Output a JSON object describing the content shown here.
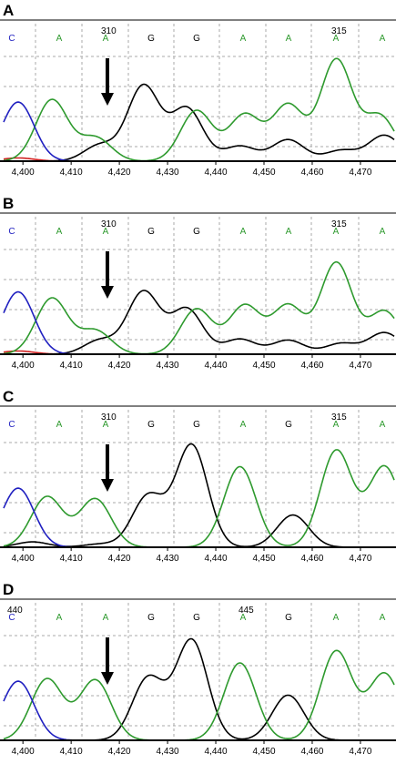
{
  "colors": {
    "A": "#2e9a2e",
    "G": "#000000",
    "C": "#2020c0",
    "T": "#d02020",
    "grid": "#a8a8a8"
  },
  "x_ticks": [
    "4,400",
    "4,410",
    "4,420",
    "4,430",
    "4,440",
    "4,450",
    "4,460",
    "4,470"
  ],
  "panels": [
    {
      "label": "A",
      "pos_labels": [
        {
          "text": "310",
          "base_index": 2
        },
        {
          "text": "315",
          "base_index": 7
        }
      ],
      "bases": [
        "C",
        "A",
        "A",
        "G",
        "G",
        "A",
        "A",
        "A",
        "A"
      ],
      "arrow_base_index": 2
    },
    {
      "label": "B",
      "pos_labels": [
        {
          "text": "310",
          "base_index": 2
        },
        {
          "text": "315",
          "base_index": 7
        }
      ],
      "bases": [
        "C",
        "A",
        "A",
        "G",
        "G",
        "A",
        "A",
        "A",
        "A"
      ],
      "arrow_base_index": 2
    },
    {
      "label": "C",
      "pos_labels": [
        {
          "text": "310",
          "base_index": 2
        },
        {
          "text": "315",
          "base_index": 7
        }
      ],
      "bases": [
        "C",
        "A",
        "A",
        "G",
        "G",
        "A",
        "G",
        "A",
        "A"
      ],
      "arrow_base_index": 2
    },
    {
      "label": "D",
      "pos_labels": [
        {
          "text": "440",
          "base_index": 0
        },
        {
          "text": "445",
          "base_index": 5
        }
      ],
      "bases": [
        "C",
        "A",
        "A",
        "G",
        "G",
        "A",
        "G",
        "A",
        "A"
      ],
      "arrow_base_index": 2
    }
  ],
  "chart_data": [
    {
      "type": "line",
      "panel": "A",
      "x_ticks": [
        "4,400",
        "4,410",
        "4,420",
        "4,430",
        "4,440",
        "4,450",
        "4,460",
        "4,470"
      ],
      "bases": [
        "C",
        "A",
        "A",
        "G",
        "G",
        "A",
        "A",
        "A",
        "A"
      ],
      "peaks": {
        "C": [
          [
            4399,
            0.55
          ]
        ],
        "A": [
          [
            4406,
            0.57
          ],
          [
            4415,
            0.22
          ],
          [
            4436,
            0.47
          ],
          [
            4446,
            0.43
          ],
          [
            4455,
            0.52
          ],
          [
            4465,
            0.94
          ],
          [
            4474,
            0.42
          ]
        ],
        "G": [
          [
            4416,
            0.15
          ],
          [
            4425,
            0.7
          ],
          [
            4434,
            0.49
          ],
          [
            4445,
            0.14
          ],
          [
            4455,
            0.2
          ],
          [
            4466,
            0.1
          ],
          [
            4475,
            0.24
          ]
        ],
        "T": [
          [
            4399,
            0.03
          ]
        ]
      }
    },
    {
      "type": "line",
      "panel": "B",
      "x_ticks": [
        "4,400",
        "4,410",
        "4,420",
        "4,430",
        "4,440",
        "4,450",
        "4,460",
        "4,470"
      ],
      "bases": [
        "C",
        "A",
        "A",
        "G",
        "G",
        "A",
        "A",
        "A",
        "A"
      ],
      "peaks": {
        "C": [
          [
            4399,
            0.58
          ]
        ],
        "A": [
          [
            4406,
            0.52
          ],
          [
            4415,
            0.22
          ],
          [
            4436,
            0.42
          ],
          [
            4446,
            0.45
          ],
          [
            4455,
            0.45
          ],
          [
            4465,
            0.85
          ],
          [
            4475,
            0.4
          ]
        ],
        "G": [
          [
            4416,
            0.13
          ],
          [
            4425,
            0.58
          ],
          [
            4434,
            0.42
          ],
          [
            4445,
            0.14
          ],
          [
            4455,
            0.13
          ],
          [
            4466,
            0.1
          ],
          [
            4475,
            0.2
          ]
        ],
        "T": [
          [
            4399,
            0.03
          ]
        ]
      }
    },
    {
      "type": "line",
      "panel": "C",
      "x_ticks": [
        "4,400",
        "4,410",
        "4,420",
        "4,430",
        "4,440",
        "4,450",
        "4,460",
        "4,470"
      ],
      "bases": [
        "C",
        "A",
        "A",
        "G",
        "G",
        "A",
        "G",
        "A",
        "A"
      ],
      "peaks": {
        "C": [
          [
            4399,
            0.55
          ]
        ],
        "A": [
          [
            4405,
            0.47
          ],
          [
            4415,
            0.45
          ],
          [
            4445,
            0.75
          ],
          [
            4465,
            0.9
          ],
          [
            4475,
            0.75
          ]
        ],
        "G": [
          [
            4402,
            0.05
          ],
          [
            4416,
            0.03
          ],
          [
            4426,
            0.48
          ],
          [
            4435,
            0.95
          ],
          [
            4456,
            0.3
          ]
        ]
      }
    },
    {
      "type": "line",
      "panel": "D",
      "x_ticks": [
        "4,400",
        "4,410",
        "4,420",
        "4,430",
        "4,440",
        "4,450",
        "4,460",
        "4,470"
      ],
      "bases": [
        "C",
        "A",
        "A",
        "G",
        "G",
        "A",
        "G",
        "A",
        "A"
      ],
      "peaks": {
        "C": [
          [
            4399,
            0.55
          ]
        ],
        "A": [
          [
            4405,
            0.57
          ],
          [
            4415,
            0.56
          ],
          [
            4445,
            0.72
          ],
          [
            4465,
            0.83
          ],
          [
            4475,
            0.62
          ]
        ],
        "G": [
          [
            4426,
            0.58
          ],
          [
            4435,
            0.93
          ],
          [
            4455,
            0.42
          ]
        ]
      }
    }
  ]
}
